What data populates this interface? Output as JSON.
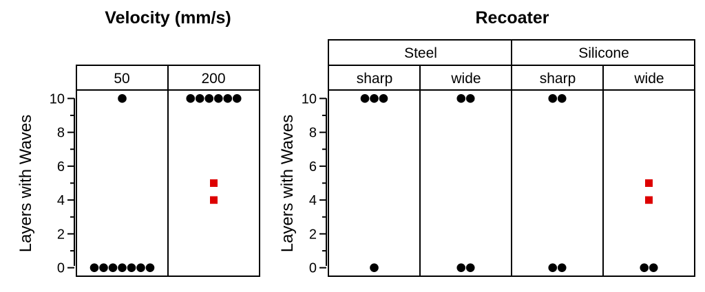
{
  "chart_data": [
    {
      "type": "scatter",
      "title": "Velocity (mm/s)",
      "ylabel": "Layers with Waves",
      "ylim": [
        -0.5,
        10.5
      ],
      "yticks": [
        0,
        2,
        4,
        6,
        8,
        10
      ],
      "panels": [
        {
          "label": "50",
          "points": [
            {
              "y": 10,
              "count": 1,
              "marker": "circle"
            },
            {
              "y": 0,
              "count": 7,
              "marker": "circle"
            }
          ]
        },
        {
          "label": "200",
          "points": [
            {
              "y": 10,
              "count": 6,
              "marker": "circle"
            },
            {
              "y": 5,
              "count": 1,
              "marker": "square"
            },
            {
              "y": 4,
              "count": 1,
              "marker": "square"
            }
          ]
        }
      ]
    },
    {
      "type": "scatter",
      "title": "Recoater",
      "ylabel": "Layers with Waves",
      "ylim": [
        -0.5,
        10.5
      ],
      "yticks": [
        0,
        2,
        4,
        6,
        8,
        10
      ],
      "groups": [
        "Steel",
        "Silicone"
      ],
      "panels": [
        {
          "group": "Steel",
          "label": "sharp",
          "points": [
            {
              "y": 10,
              "count": 3,
              "marker": "circle"
            },
            {
              "y": 0,
              "count": 1,
              "marker": "circle"
            }
          ]
        },
        {
          "group": "Steel",
          "label": "wide",
          "points": [
            {
              "y": 10,
              "count": 2,
              "marker": "circle"
            },
            {
              "y": 0,
              "count": 2,
              "marker": "circle"
            }
          ]
        },
        {
          "group": "Silicone",
          "label": "sharp",
          "points": [
            {
              "y": 10,
              "count": 2,
              "marker": "circle"
            },
            {
              "y": 0,
              "count": 2,
              "marker": "circle"
            }
          ]
        },
        {
          "group": "Silicone",
          "label": "wide",
          "points": [
            {
              "y": 5,
              "count": 1,
              "marker": "square"
            },
            {
              "y": 4,
              "count": 1,
              "marker": "square"
            },
            {
              "y": 0,
              "count": 2,
              "marker": "circle"
            }
          ]
        }
      ]
    }
  ],
  "colors": {
    "circle": "#000000",
    "square": "#dd0000"
  }
}
